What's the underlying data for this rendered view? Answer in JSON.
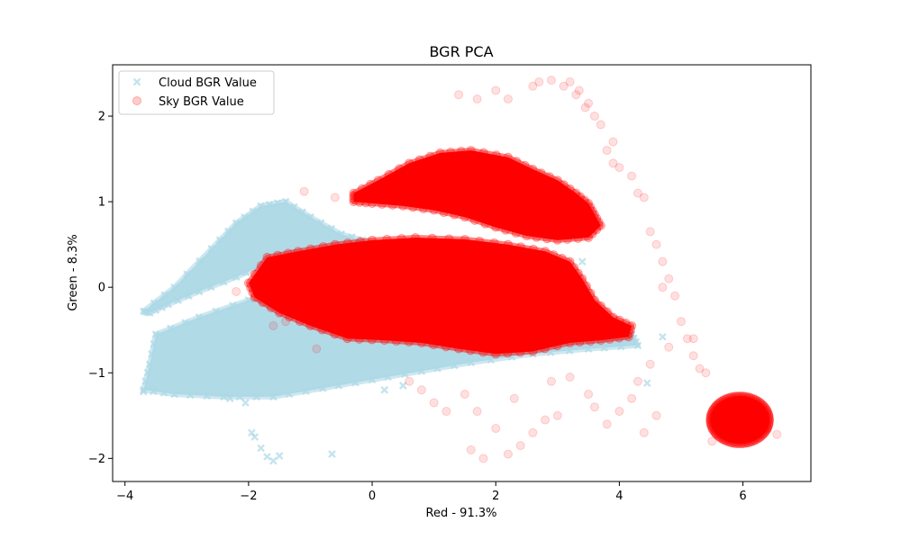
{
  "chart_data": {
    "type": "scatter",
    "title": "BGR PCA",
    "xlabel": "Red - 91.3%",
    "ylabel": "Green - 8.3%",
    "xlim": [
      -4.2,
      7.1
    ],
    "ylim": [
      -2.27,
      2.6
    ],
    "xticks": [
      -4,
      -2,
      0,
      2,
      4,
      6
    ],
    "yticks": [
      -2,
      -1,
      0,
      1,
      2
    ],
    "grid": false,
    "legend_position": "top-left",
    "series": [
      {
        "name": "Cloud BGR Value",
        "color": "#add8e6",
        "marker": "x",
        "alpha": 0.6,
        "clusters": [
          {
            "label": "upper-diagonal-band",
            "polygon": [
              [
                -3.7,
                -0.28
              ],
              [
                -3.2,
                0.0
              ],
              [
                -2.6,
                0.45
              ],
              [
                -2.2,
                0.75
              ],
              [
                -1.8,
                0.95
              ],
              [
                -1.4,
                1.0
              ],
              [
                -1.0,
                0.82
              ],
              [
                -0.5,
                0.62
              ],
              [
                0.0,
                0.52
              ],
              [
                -0.6,
                0.45
              ],
              [
                -1.2,
                0.38
              ],
              [
                -1.7,
                0.28
              ],
              [
                -2.2,
                0.12
              ],
              [
                -2.8,
                -0.05
              ],
              [
                -3.3,
                -0.2
              ],
              [
                -3.6,
                -0.3
              ]
            ]
          },
          {
            "label": "lower-band",
            "polygon": [
              [
                -3.5,
                -0.55
              ],
              [
                -2.8,
                -0.35
              ],
              [
                -2.0,
                -0.15
              ],
              [
                -1.2,
                -0.05
              ],
              [
                -0.4,
                0.0
              ],
              [
                0.6,
                -0.05
              ],
              [
                1.6,
                -0.15
              ],
              [
                2.6,
                -0.3
              ],
              [
                3.6,
                -0.45
              ],
              [
                4.2,
                -0.55
              ],
              [
                4.3,
                -0.68
              ],
              [
                3.5,
                -0.72
              ],
              [
                2.6,
                -0.78
              ],
              [
                1.6,
                -0.88
              ],
              [
                0.8,
                -0.98
              ],
              [
                0.0,
                -1.08
              ],
              [
                -0.8,
                -1.18
              ],
              [
                -1.6,
                -1.28
              ],
              [
                -2.4,
                -1.28
              ],
              [
                -3.2,
                -1.25
              ],
              [
                -3.7,
                -1.2
              ],
              [
                -3.6,
                -0.9
              ]
            ]
          }
        ],
        "points": [
          [
            -1.9,
            -1.75
          ],
          [
            -1.8,
            -1.88
          ],
          [
            -1.7,
            -1.98
          ],
          [
            -1.6,
            -2.03
          ],
          [
            -1.5,
            -1.97
          ],
          [
            -0.65,
            -1.95
          ],
          [
            -1.95,
            -1.7
          ],
          [
            4.45,
            -1.12
          ],
          [
            3.4,
            0.3
          ],
          [
            4.7,
            -0.58
          ],
          [
            -3.7,
            -1.22
          ],
          [
            -3.55,
            -1.15
          ],
          [
            -2.3,
            -1.3
          ],
          [
            -2.05,
            -1.35
          ],
          [
            0.5,
            -1.15
          ],
          [
            0.2,
            -1.2
          ]
        ]
      },
      {
        "name": "Sky BGR Value",
        "color": "#ff0000",
        "marker": "o",
        "alpha": 0.12,
        "clusters": [
          {
            "label": "upper-blob",
            "polygon": [
              [
                -0.3,
                1.1
              ],
              [
                0.1,
                1.25
              ],
              [
                0.6,
                1.45
              ],
              [
                1.1,
                1.57
              ],
              [
                1.6,
                1.6
              ],
              [
                2.2,
                1.52
              ],
              [
                2.6,
                1.38
              ],
              [
                3.0,
                1.25
              ],
              [
                3.3,
                1.1
              ],
              [
                3.5,
                0.98
              ],
              [
                3.6,
                0.85
              ],
              [
                3.7,
                0.72
              ],
              [
                3.5,
                0.58
              ],
              [
                3.0,
                0.55
              ],
              [
                2.5,
                0.6
              ],
              [
                2.0,
                0.7
              ],
              [
                1.5,
                0.82
              ],
              [
                1.0,
                0.9
              ],
              [
                0.5,
                0.95
              ],
              [
                0.0,
                0.98
              ],
              [
                -0.3,
                1.0
              ]
            ]
          },
          {
            "label": "main-blob",
            "polygon": [
              [
                -2.0,
                0.05
              ],
              [
                -1.7,
                0.35
              ],
              [
                -1.2,
                0.42
              ],
              [
                -0.6,
                0.5
              ],
              [
                0.0,
                0.55
              ],
              [
                0.7,
                0.58
              ],
              [
                1.5,
                0.56
              ],
              [
                2.2,
                0.5
              ],
              [
                2.8,
                0.42
              ],
              [
                3.2,
                0.3
              ],
              [
                3.4,
                0.1
              ],
              [
                3.6,
                -0.15
              ],
              [
                3.9,
                -0.35
              ],
              [
                4.2,
                -0.45
              ],
              [
                4.15,
                -0.58
              ],
              [
                3.7,
                -0.62
              ],
              [
                3.2,
                -0.65
              ],
              [
                2.6,
                -0.75
              ],
              [
                2.0,
                -0.78
              ],
              [
                1.4,
                -0.72
              ],
              [
                0.8,
                -0.65
              ],
              [
                0.2,
                -0.62
              ],
              [
                -0.4,
                -0.6
              ],
              [
                -1.0,
                -0.45
              ],
              [
                -1.5,
                -0.3
              ],
              [
                -1.9,
                -0.12
              ]
            ]
          },
          {
            "label": "bottom-right-cluster",
            "ellipse": {
              "cx": 5.95,
              "cy": -1.55,
              "rx": 0.48,
              "ry": 0.28
            }
          }
        ],
        "points": [
          [
            2.7,
            2.4
          ],
          [
            2.9,
            2.42
          ],
          [
            3.1,
            2.35
          ],
          [
            3.3,
            2.25
          ],
          [
            3.45,
            2.1
          ],
          [
            3.6,
            2.0
          ],
          [
            3.7,
            1.9
          ],
          [
            3.35,
            2.3
          ],
          [
            3.5,
            2.15
          ],
          [
            3.2,
            2.4
          ],
          [
            1.7,
            2.2
          ],
          [
            2.0,
            2.3
          ],
          [
            1.4,
            2.25
          ],
          [
            2.2,
            2.2
          ],
          [
            2.6,
            2.35
          ],
          [
            3.9,
            1.7
          ],
          [
            3.8,
            1.6
          ],
          [
            4.0,
            1.4
          ],
          [
            4.2,
            1.3
          ],
          [
            4.3,
            1.1
          ],
          [
            4.4,
            1.05
          ],
          [
            3.9,
            1.45
          ],
          [
            4.5,
            0.65
          ],
          [
            4.6,
            0.5
          ],
          [
            4.7,
            0.3
          ],
          [
            4.8,
            0.1
          ],
          [
            4.9,
            -0.1
          ],
          [
            5.0,
            -0.4
          ],
          [
            5.1,
            -0.6
          ],
          [
            5.2,
            -0.8
          ],
          [
            5.3,
            -0.95
          ],
          [
            5.4,
            -1.0
          ],
          [
            4.8,
            -0.7
          ],
          [
            4.5,
            -0.9
          ],
          [
            4.3,
            -1.1
          ],
          [
            4.2,
            -1.3
          ],
          [
            4.0,
            -1.45
          ],
          [
            3.8,
            -1.6
          ],
          [
            3.0,
            -1.5
          ],
          [
            2.8,
            -1.55
          ],
          [
            2.6,
            -1.7
          ],
          [
            2.4,
            -1.85
          ],
          [
            2.2,
            -1.95
          ],
          [
            1.8,
            -2.0
          ],
          [
            1.6,
            -1.9
          ],
          [
            2.0,
            -1.65
          ],
          [
            1.2,
            -1.45
          ],
          [
            1.0,
            -1.35
          ],
          [
            0.8,
            -1.2
          ],
          [
            1.5,
            -1.25
          ],
          [
            2.3,
            -1.3
          ],
          [
            3.2,
            -1.05
          ],
          [
            3.5,
            -1.25
          ],
          [
            2.9,
            -1.1
          ],
          [
            4.6,
            -1.5
          ],
          [
            4.4,
            -1.7
          ],
          [
            3.6,
            -1.4
          ],
          [
            0.6,
            -1.1
          ],
          [
            -0.6,
            1.05
          ],
          [
            -1.1,
            1.12
          ],
          [
            -1.4,
            -0.4
          ],
          [
            -1.6,
            -0.45
          ],
          [
            -2.2,
            -0.05
          ],
          [
            -0.9,
            -0.72
          ],
          [
            1.7,
            -1.45
          ],
          [
            4.7,
            0.0
          ],
          [
            5.2,
            -0.6
          ],
          [
            6.55,
            -1.72
          ],
          [
            6.4,
            -1.65
          ],
          [
            5.5,
            -1.8
          ]
        ]
      }
    ]
  }
}
